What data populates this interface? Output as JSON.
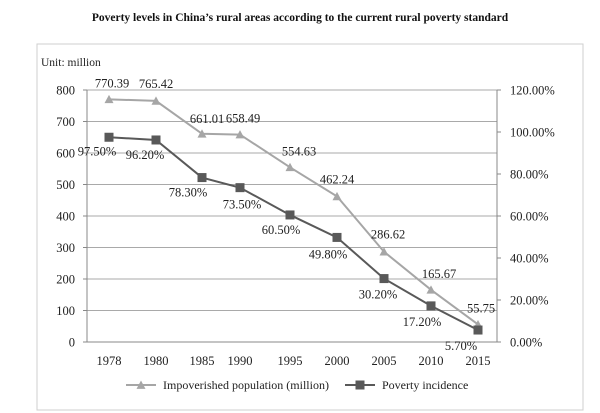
{
  "chart_data": {
    "type": "line",
    "title": "Poverty levels in China’s rural areas according to the current rural poverty standard",
    "unit_label": "Unit: million",
    "categories": [
      "1978",
      "1980",
      "1985",
      "1990",
      "1995",
      "2000",
      "2005",
      "2010",
      "2015"
    ],
    "y_left": {
      "min": 0,
      "max": 800,
      "ticks": [
        "0",
        "100",
        "200",
        "300",
        "400",
        "500",
        "600",
        "700",
        "800"
      ]
    },
    "y_right": {
      "min": 0,
      "max": 120,
      "ticks": [
        "0.00%",
        "20.00%",
        "40.00%",
        "60.00%",
        "80.00%",
        "100.00%",
        "120.00%"
      ]
    },
    "grid": "horizontal",
    "legend_position": "bottom",
    "series": [
      {
        "name": "Impoverished population (million)",
        "axis": "left",
        "marker": "triangle",
        "color": "#a6a6a6",
        "values": [
          770.39,
          765.42,
          661.01,
          658.49,
          554.63,
          462.24,
          286.62,
          165.67,
          55.75
        ],
        "labels": [
          "770.39",
          "765.42",
          "661.01",
          "658.49",
          "554.63",
          "462.24",
          "286.62",
          "165.67",
          "55.75"
        ]
      },
      {
        "name": "Poverty incidence",
        "axis": "right",
        "marker": "square",
        "color": "#595959",
        "values": [
          97.5,
          96.2,
          78.3,
          73.5,
          60.5,
          49.8,
          30.2,
          17.2,
          5.7
        ],
        "labels": [
          "97.50%",
          "96.20%",
          "78.30%",
          "73.50%",
          "60.50%",
          "49.80%",
          "30.20%",
          "17.20%",
          "5.70%"
        ]
      }
    ]
  }
}
